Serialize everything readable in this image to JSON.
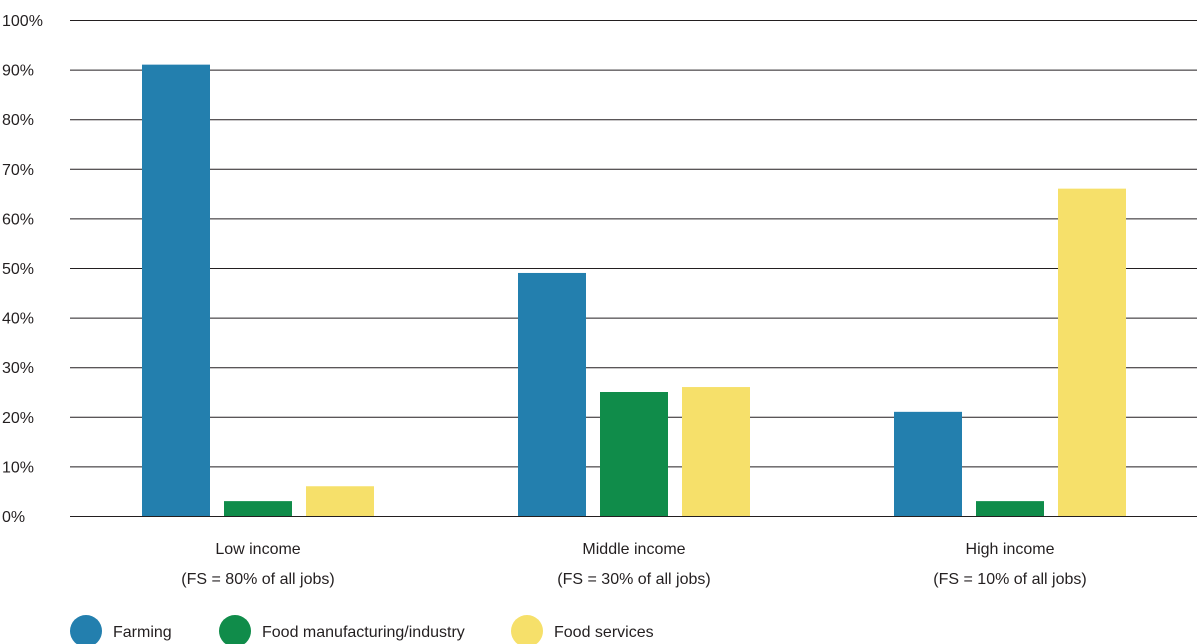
{
  "chart_data": {
    "type": "bar",
    "title": "",
    "xlabel": "",
    "ylabel": "",
    "ylim": [
      0,
      100
    ],
    "yticks": [
      0,
      10,
      20,
      30,
      40,
      50,
      60,
      70,
      80,
      90,
      100
    ],
    "ytick_labels": [
      "0%",
      "10%",
      "20%",
      "30%",
      "40%",
      "50%",
      "60%",
      "70%",
      "80%",
      "90%",
      "100%"
    ],
    "grid": true,
    "legend_position": "bottom-left",
    "categories": [
      {
        "line1": "Low income",
        "line2": "(FS = 80% of all jobs)"
      },
      {
        "line1": "Middle income",
        "line2": "(FS = 30% of all jobs)"
      },
      {
        "line1": "High income",
        "line2": "(FS = 10% of all jobs)"
      }
    ],
    "series": [
      {
        "name": "Farming",
        "color": "#237fae",
        "values": [
          91,
          49,
          21
        ]
      },
      {
        "name": "Food manufacturing/industry",
        "color": "#108c4a",
        "values": [
          3,
          25,
          3
        ]
      },
      {
        "name": "Food services",
        "color": "#f6e06a",
        "values": [
          6,
          26,
          66
        ]
      }
    ]
  }
}
